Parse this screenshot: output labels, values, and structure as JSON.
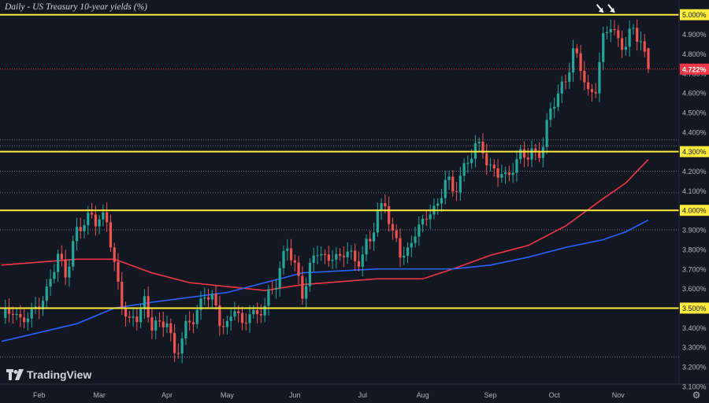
{
  "chart_data": {
    "type": "candlestick",
    "title": "Daily - US Treasury 10-year yields (%)",
    "ylim": [
      3.1,
      5.05
    ],
    "y_ticks": [
      "5.000%",
      "4.900%",
      "4.800%",
      "4.700%",
      "4.600%",
      "4.500%",
      "4.400%",
      "4.300%",
      "4.200%",
      "4.100%",
      "4.000%",
      "3.900%",
      "3.800%",
      "3.700%",
      "3.600%",
      "3.500%",
      "3.400%",
      "3.300%",
      "3.200%",
      "3.100%"
    ],
    "x_ticks": [
      "Feb",
      "Mar",
      "Apr",
      "May",
      "Jun",
      "Jul",
      "Aug",
      "Sep",
      "Oct",
      "Nov"
    ],
    "last_price": 4.722,
    "last_price_label": "4.722%",
    "horizontal_levels": [
      {
        "value": 5.0,
        "label": "5.000%"
      },
      {
        "value": 4.3,
        "label": "4.300%"
      },
      {
        "value": 4.0,
        "label": "4.000%"
      },
      {
        "value": 3.5,
        "label": "3.500%"
      }
    ],
    "dotted_levels": [
      4.36,
      4.33,
      4.2,
      4.09,
      3.9,
      3.25
    ],
    "close_series": [
      {
        "x": 1,
        "y": 3.45
      },
      {
        "x": 3,
        "y": 3.52
      },
      {
        "x": 5,
        "y": 3.43
      },
      {
        "x": 8,
        "y": 3.45
      },
      {
        "x": 10,
        "y": 3.55
      },
      {
        "x": 12,
        "y": 3.58
      },
      {
        "x": 15,
        "y": 3.75
      },
      {
        "x": 17,
        "y": 3.7
      },
      {
        "x": 20,
        "y": 3.88
      },
      {
        "x": 22,
        "y": 3.92
      },
      {
        "x": 24,
        "y": 4.0
      },
      {
        "x": 26,
        "y": 3.95
      },
      {
        "x": 28,
        "y": 3.93
      },
      {
        "x": 30,
        "y": 3.72
      },
      {
        "x": 32,
        "y": 3.55
      },
      {
        "x": 34,
        "y": 3.4
      },
      {
        "x": 36,
        "y": 3.45
      },
      {
        "x": 38,
        "y": 3.55
      },
      {
        "x": 40,
        "y": 3.42
      },
      {
        "x": 42,
        "y": 3.38
      },
      {
        "x": 44,
        "y": 3.45
      },
      {
        "x": 46,
        "y": 3.28
      },
      {
        "x": 48,
        "y": 3.33
      },
      {
        "x": 50,
        "y": 3.42
      },
      {
        "x": 52,
        "y": 3.5
      },
      {
        "x": 54,
        "y": 3.58
      },
      {
        "x": 56,
        "y": 3.52
      },
      {
        "x": 58,
        "y": 3.45
      },
      {
        "x": 60,
        "y": 3.42
      },
      {
        "x": 62,
        "y": 3.5
      },
      {
        "x": 64,
        "y": 3.38
      },
      {
        "x": 66,
        "y": 3.52
      },
      {
        "x": 68,
        "y": 3.45
      },
      {
        "x": 70,
        "y": 3.5
      },
      {
        "x": 72,
        "y": 3.6
      },
      {
        "x": 74,
        "y": 3.72
      },
      {
        "x": 76,
        "y": 3.8
      },
      {
        "x": 78,
        "y": 3.7
      },
      {
        "x": 80,
        "y": 3.6
      },
      {
        "x": 82,
        "y": 3.7
      },
      {
        "x": 84,
        "y": 3.78
      },
      {
        "x": 86,
        "y": 3.75
      },
      {
        "x": 88,
        "y": 3.8
      },
      {
        "x": 90,
        "y": 3.72
      },
      {
        "x": 92,
        "y": 3.8
      },
      {
        "x": 94,
        "y": 3.75
      },
      {
        "x": 96,
        "y": 3.78
      },
      {
        "x": 98,
        "y": 3.82
      },
      {
        "x": 100,
        "y": 4.0
      },
      {
        "x": 102,
        "y": 4.06
      },
      {
        "x": 104,
        "y": 3.85
      },
      {
        "x": 106,
        "y": 3.78
      },
      {
        "x": 108,
        "y": 3.8
      },
      {
        "x": 110,
        "y": 3.9
      },
      {
        "x": 112,
        "y": 3.9
      },
      {
        "x": 114,
        "y": 4.02
      },
      {
        "x": 116,
        "y": 4.03
      },
      {
        "x": 118,
        "y": 4.15
      },
      {
        "x": 120,
        "y": 4.08
      },
      {
        "x": 122,
        "y": 4.2
      },
      {
        "x": 124,
        "y": 4.25
      },
      {
        "x": 126,
        "y": 4.3
      },
      {
        "x": 128,
        "y": 4.33
      },
      {
        "x": 130,
        "y": 4.22
      },
      {
        "x": 132,
        "y": 4.18
      },
      {
        "x": 134,
        "y": 4.15
      },
      {
        "x": 136,
        "y": 4.25
      },
      {
        "x": 138,
        "y": 4.28
      },
      {
        "x": 140,
        "y": 4.26
      },
      {
        "x": 142,
        "y": 4.3
      },
      {
        "x": 144,
        "y": 4.35
      },
      {
        "x": 146,
        "y": 4.5
      },
      {
        "x": 148,
        "y": 4.58
      },
      {
        "x": 150,
        "y": 4.7
      },
      {
        "x": 152,
        "y": 4.8
      },
      {
        "x": 154,
        "y": 4.72
      },
      {
        "x": 156,
        "y": 4.6
      },
      {
        "x": 158,
        "y": 4.65
      },
      {
        "x": 160,
        "y": 4.85
      },
      {
        "x": 162,
        "y": 4.95
      },
      {
        "x": 164,
        "y": 4.88
      },
      {
        "x": 166,
        "y": 4.85
      },
      {
        "x": 168,
        "y": 4.9
      },
      {
        "x": 170,
        "y": 4.88
      },
      {
        "x": 172,
        "y": 4.722
      }
    ],
    "series": [
      {
        "name": "",
        "color": "#f23645",
        "role": "slower moving average",
        "points": [
          {
            "x": 0,
            "y": 3.72
          },
          {
            "x": 20,
            "y": 3.75
          },
          {
            "x": 30,
            "y": 3.75
          },
          {
            "x": 40,
            "y": 3.68
          },
          {
            "x": 50,
            "y": 3.63
          },
          {
            "x": 60,
            "y": 3.61
          },
          {
            "x": 70,
            "y": 3.59
          },
          {
            "x": 80,
            "y": 3.62
          },
          {
            "x": 100,
            "y": 3.65
          },
          {
            "x": 112,
            "y": 3.65
          },
          {
            "x": 120,
            "y": 3.7
          },
          {
            "x": 130,
            "y": 3.77
          },
          {
            "x": 140,
            "y": 3.82
          },
          {
            "x": 150,
            "y": 3.92
          },
          {
            "x": 160,
            "y": 4.06
          },
          {
            "x": 166,
            "y": 4.14
          },
          {
            "x": 172,
            "y": 4.26
          }
        ]
      },
      {
        "name": "",
        "color": "#2962ff",
        "role": "faster moving average",
        "points": [
          {
            "x": 0,
            "y": 3.33
          },
          {
            "x": 20,
            "y": 3.42
          },
          {
            "x": 30,
            "y": 3.5
          },
          {
            "x": 40,
            "y": 3.53
          },
          {
            "x": 60,
            "y": 3.58
          },
          {
            "x": 80,
            "y": 3.68
          },
          {
            "x": 100,
            "y": 3.7
          },
          {
            "x": 120,
            "y": 3.7
          },
          {
            "x": 130,
            "y": 3.72
          },
          {
            "x": 140,
            "y": 3.76
          },
          {
            "x": 150,
            "y": 3.81
          },
          {
            "x": 160,
            "y": 3.85
          },
          {
            "x": 166,
            "y": 3.89
          },
          {
            "x": 172,
            "y": 3.95
          }
        ]
      }
    ],
    "x_range": [
      0,
      172
    ],
    "x_tick_positions": [
      10,
      26,
      44,
      60,
      78,
      96,
      112,
      130,
      147,
      164
    ],
    "annotations": [
      {
        "type": "arrow",
        "color": "#ffffff",
        "x": 160,
        "y": 5.0
      },
      {
        "type": "arrow",
        "color": "#ffffff",
        "x": 163,
        "y": 5.0
      }
    ],
    "colors": {
      "background": "#131722",
      "up": "#26a69a",
      "down": "#ef5350",
      "levels": "#ffeb3b",
      "text": "#d1d4dc",
      "grid_dots": "#787b86",
      "last_price_bg": "#f23645"
    }
  },
  "brand": {
    "name": "TradingView"
  },
  "controls": {
    "settings_icon": "gear-icon"
  }
}
